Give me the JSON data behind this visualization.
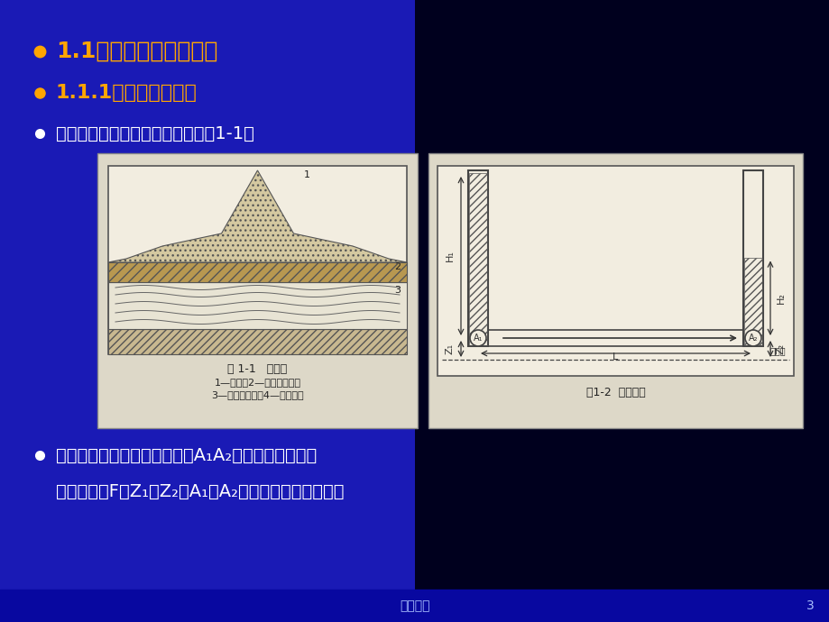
{
  "bg_color_left": "#1a1ab5",
  "bg_color_right": "#000055",
  "title1": "1.1地下水流的基本性质",
  "title2": "1.1.1动水压力和流砂",
  "title3": "地下水的类型：潜水和层间水（图1-1）",
  "bullet_color_gold": "#FFA500",
  "bullet_color_white": "#FFFFFF",
  "body_line1": "从水的流动方向取一柱状土体A₁A₂作为脱离体，其横",
  "body_line2": "截面面积为F、Z₁、Z₂为A₁、A₂在基准面以上的高程。",
  "footer_text": "深层分析",
  "page_number": "3",
  "fig1_caption1": "图 1-1   地下水",
  "fig1_caption2": "1—潜水；2—无压层间水；",
  "fig1_caption3": "3—承压层间水；4—不透水层",
  "fig2_caption": "图1-2  动水压力"
}
